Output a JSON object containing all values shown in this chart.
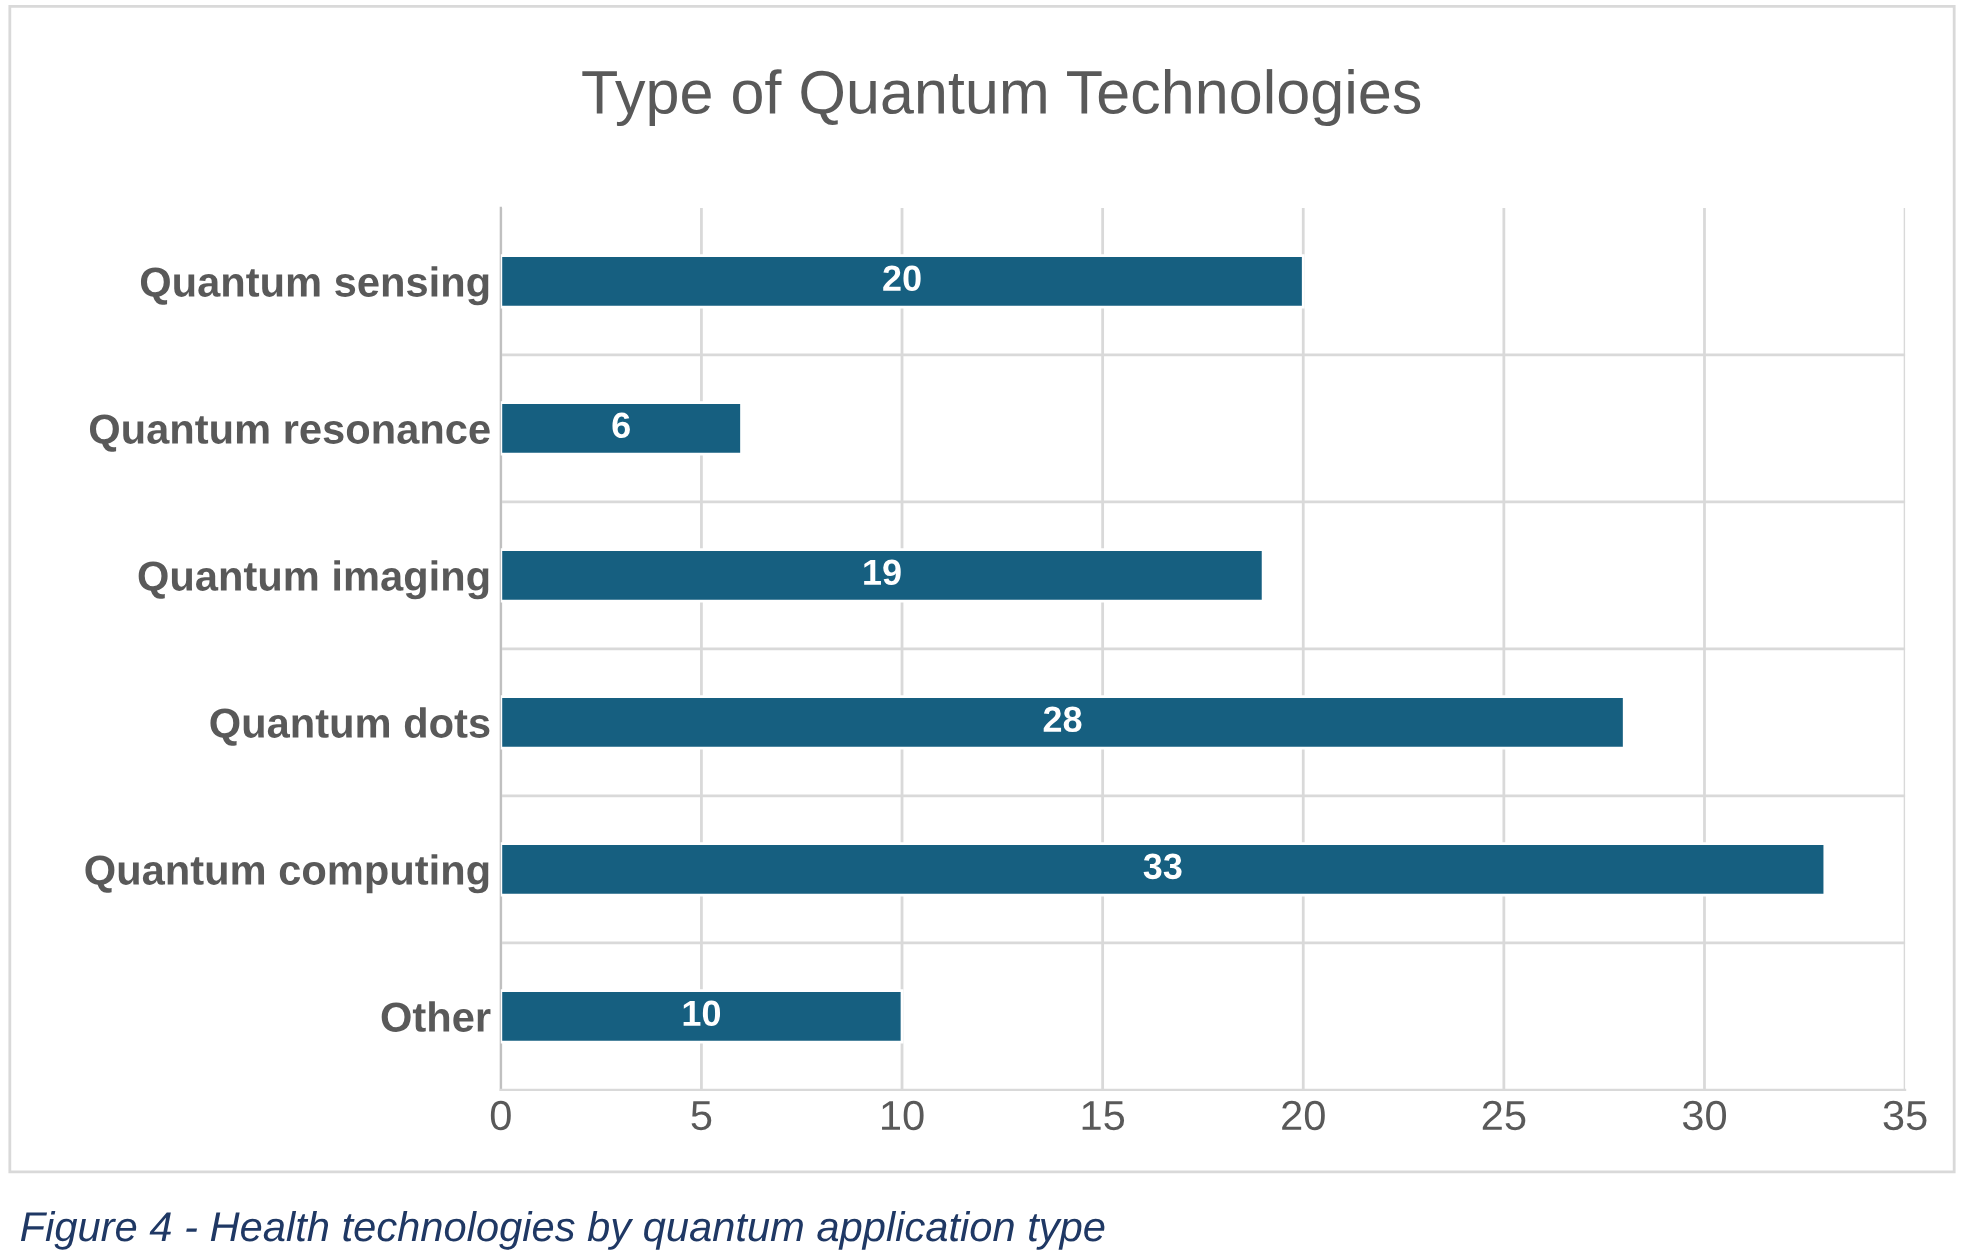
{
  "chart_data": {
    "type": "bar",
    "orientation": "horizontal",
    "title": "Type of Quantum Technologies",
    "categories": [
      "Quantum sensing",
      "Quantum resonance",
      "Quantum imaging",
      "Quantum dots",
      "Quantum computing",
      "Other"
    ],
    "values": [
      20,
      6,
      19,
      28,
      33,
      10
    ],
    "color": "#165f80",
    "xlim": [
      0,
      35
    ],
    "xticks": [
      0,
      5,
      10,
      15,
      20,
      25,
      30,
      35
    ],
    "grid": true,
    "data_labels": true,
    "annotations": [
      "Figure 4 - Health technologies by quantum application type"
    ]
  }
}
